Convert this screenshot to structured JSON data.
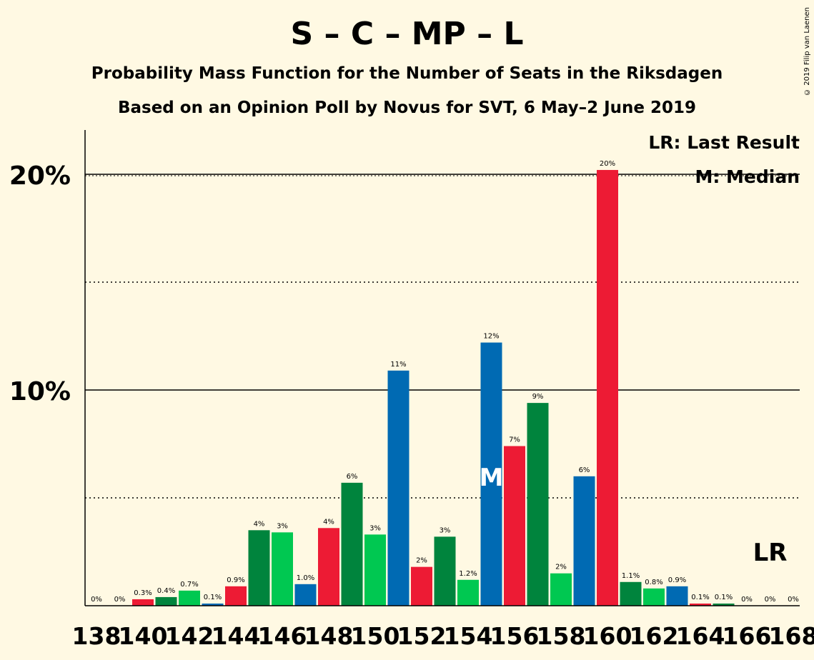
{
  "title": "S – C – MP – L",
  "subtitle1": "Probability Mass Function for the Number of Seats in the Riksdagen",
  "subtitle2": "Based on an Opinion Poll by Novus for SVT, 6 May–2 June 2019",
  "copyright": "© 2019 Filip van Laenen",
  "legend": {
    "last_result": "LR: Last Result",
    "median": "M: Median"
  },
  "colors": {
    "background": "#fff9e3",
    "red": "#ed1b34",
    "dark_green": "#00843d",
    "light_green": "#00c851",
    "blue": "#006ab3"
  },
  "chart_data": {
    "type": "bar",
    "x": [
      138,
      139,
      140,
      141,
      142,
      143,
      144,
      145,
      146,
      147,
      148,
      149,
      150,
      151,
      152,
      153,
      154,
      155,
      156,
      157,
      158,
      159,
      160,
      161,
      162,
      163,
      164,
      165,
      166,
      167,
      168
    ],
    "values": [
      0,
      0,
      0.3,
      0.4,
      0.7,
      0.1,
      0.9,
      3.5,
      3.4,
      1.0,
      3.6,
      5.7,
      3.3,
      10.9,
      1.8,
      3.2,
      1.2,
      12.2,
      7.4,
      9.4,
      1.5,
      6.0,
      20.2,
      1.1,
      0.8,
      0.9,
      0.1,
      0.1,
      0,
      0,
      0
    ],
    "labels": [
      "0%",
      "0%",
      "0.3%",
      "0.4%",
      "0.7%",
      "0.1%",
      "0.9%",
      "4%",
      "3%",
      "1.0%",
      "4%",
      "6%",
      "3%",
      "11%",
      "2%",
      "3%",
      "1.2%",
      "12%",
      "7%",
      "9%",
      "2%",
      "6%",
      "20%",
      "1.1%",
      "0.8%",
      "0.9%",
      "0.1%",
      "0.1%",
      "0%",
      "0%",
      "0%"
    ],
    "bar_colors": [
      "red",
      "dark_green",
      "red",
      "dark_green",
      "light_green",
      "blue",
      "red",
      "dark_green",
      "light_green",
      "blue",
      "red",
      "dark_green",
      "light_green",
      "blue",
      "red",
      "dark_green",
      "light_green",
      "blue",
      "red",
      "dark_green",
      "light_green",
      "blue",
      "red",
      "dark_green",
      "light_green",
      "blue",
      "red",
      "dark_green",
      "light_green",
      "blue",
      "red"
    ],
    "x_tick_labels": [
      "138",
      "140",
      "142",
      "144",
      "146",
      "148",
      "150",
      "152",
      "154",
      "156",
      "158",
      "160",
      "162",
      "164",
      "166",
      "168"
    ],
    "y_tick_labels": [
      "10%",
      "20%"
    ],
    "y_ticks": [
      10,
      20
    ],
    "y_minor_gridlines": [
      5,
      15
    ],
    "ylim": [
      0,
      22
    ],
    "median_seat": 155,
    "median_marker": "M",
    "last_result_seat": 167,
    "last_result_marker": "LR"
  }
}
